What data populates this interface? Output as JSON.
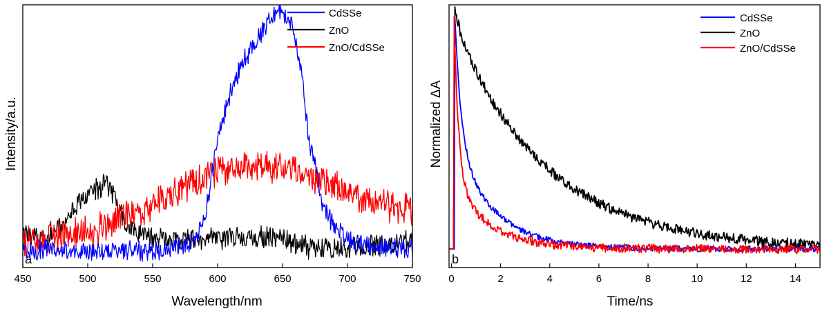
{
  "chart_data": [
    {
      "type": "line",
      "panel_label": "a",
      "title": "",
      "xlabel": "Wavelength/nm",
      "ylabel": "Intensity/a.u.",
      "xlim": [
        450,
        750
      ],
      "ylim": [
        0,
        1
      ],
      "x_ticks": [
        450,
        500,
        550,
        600,
        650,
        700,
        750
      ],
      "y_ticks_shown": false,
      "legend_position": "top-right",
      "series": [
        {
          "name": "CdSSe",
          "color": "#0000ff",
          "noise": 0.022,
          "points": [
            [
              450,
              0.02
            ],
            [
              470,
              0.03
            ],
            [
              490,
              0.02
            ],
            [
              510,
              0.02
            ],
            [
              530,
              0.03
            ],
            [
              550,
              0.02
            ],
            [
              570,
              0.04
            ],
            [
              580,
              0.06
            ],
            [
              590,
              0.14
            ],
            [
              600,
              0.47
            ],
            [
              610,
              0.66
            ],
            [
              620,
              0.78
            ],
            [
              630,
              0.86
            ],
            [
              640,
              0.95
            ],
            [
              648,
              0.99
            ],
            [
              655,
              0.95
            ],
            [
              660,
              0.86
            ],
            [
              665,
              0.72
            ],
            [
              670,
              0.48
            ],
            [
              675,
              0.37
            ],
            [
              680,
              0.22
            ],
            [
              690,
              0.12
            ],
            [
              700,
              0.07
            ],
            [
              710,
              0.05
            ],
            [
              730,
              0.04
            ],
            [
              750,
              0.03
            ]
          ]
        },
        {
          "name": "ZnO",
          "color": "#000000",
          "noise": 0.024,
          "points": [
            [
              450,
              0.08
            ],
            [
              465,
              0.08
            ],
            [
              480,
              0.12
            ],
            [
              490,
              0.2
            ],
            [
              500,
              0.24
            ],
            [
              510,
              0.28
            ],
            [
              515,
              0.3
            ],
            [
              520,
              0.24
            ],
            [
              530,
              0.12
            ],
            [
              550,
              0.07
            ],
            [
              580,
              0.07
            ],
            [
              620,
              0.08
            ],
            [
              650,
              0.07
            ],
            [
              675,
              0.03
            ],
            [
              700,
              0.04
            ],
            [
              730,
              0.05
            ],
            [
              750,
              0.06
            ]
          ]
        },
        {
          "name": "ZnO/CdSSe",
          "color": "#ff0000",
          "noise": 0.035,
          "points": [
            [
              450,
              0.05
            ],
            [
              470,
              0.06
            ],
            [
              490,
              0.09
            ],
            [
              510,
              0.12
            ],
            [
              530,
              0.16
            ],
            [
              550,
              0.21
            ],
            [
              570,
              0.26
            ],
            [
              590,
              0.31
            ],
            [
              600,
              0.35
            ],
            [
              620,
              0.36
            ],
            [
              640,
              0.36
            ],
            [
              660,
              0.34
            ],
            [
              680,
              0.3
            ],
            [
              700,
              0.25
            ],
            [
              720,
              0.22
            ],
            [
              740,
              0.19
            ],
            [
              750,
              0.19
            ]
          ]
        }
      ]
    },
    {
      "type": "line",
      "panel_label": "b",
      "title": "",
      "xlabel": "Time/ns",
      "ylabel": "Normalized ΔA",
      "xlim": [
        -0.1,
        15
      ],
      "ylim": [
        0,
        1
      ],
      "x_ticks": [
        0,
        2,
        4,
        6,
        8,
        10,
        12,
        14
      ],
      "y_ticks_shown": false,
      "legend_position": "top-right",
      "series": [
        {
          "name": "CdSSe",
          "color": "#0000ff",
          "onset": 0.12,
          "tail": 0.0,
          "noise": 0.008,
          "decay": [
            {
              "a": 0.55,
              "tau": 0.25
            },
            {
              "a": 0.45,
              "tau": 1.55
            }
          ]
        },
        {
          "name": "ZnO",
          "color": "#000000",
          "onset": 0.15,
          "tail": 0.0,
          "noise": 0.014,
          "decay": [
            {
              "a": 0.08,
              "tau": 0.2
            },
            {
              "a": 0.92,
              "tau": 3.7
            }
          ]
        },
        {
          "name": "ZnO/CdSSe",
          "color": "#ff0000",
          "onset": 0.1,
          "tail": 0.0,
          "noise": 0.012,
          "decay": [
            {
              "a": 0.72,
              "tau": 0.18
            },
            {
              "a": 0.28,
              "tau": 1.45
            }
          ]
        }
      ]
    }
  ]
}
